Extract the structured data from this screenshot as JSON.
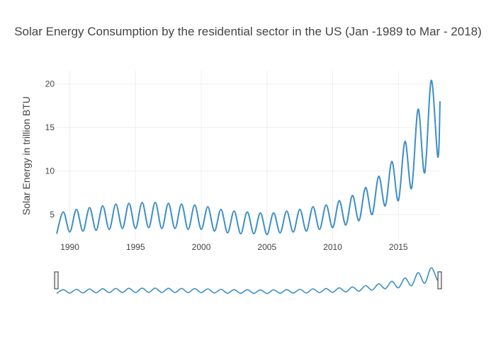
{
  "chart_data": {
    "type": "line",
    "title": "Solar Energy Consumption by the residential sector in the US (Jan -1989 to Mar - 2018)",
    "xlabel": "",
    "ylabel": "Solar Energy in trillion BTU",
    "x_range": [
      "1989-01",
      "2018-03"
    ],
    "ylim": [
      2.0,
      21.5
    ],
    "x_ticks": [
      "1990",
      "1995",
      "2000",
      "2005",
      "2010",
      "2015"
    ],
    "y_ticks": [
      "5",
      "10",
      "15",
      "20"
    ],
    "grid": true,
    "legend": "none",
    "series_color": "#3d8fc6",
    "range_slider": true,
    "series": [
      {
        "x": [
          "1989-01",
          "1989-07",
          "1990-01",
          "1990-07",
          "1991-01",
          "1991-07",
          "1992-01",
          "1992-07",
          "1993-01",
          "1993-07",
          "1994-01",
          "1994-07",
          "1995-01",
          "1995-07",
          "1996-01",
          "1996-07",
          "1997-01",
          "1997-07",
          "1998-01",
          "1998-07",
          "1999-01",
          "1999-07",
          "2000-01",
          "2000-07",
          "2001-01",
          "2001-07",
          "2002-01",
          "2002-07",
          "2003-01",
          "2003-07",
          "2004-01",
          "2004-07",
          "2005-01",
          "2005-07",
          "2006-01",
          "2006-07",
          "2007-01",
          "2007-07",
          "2008-01",
          "2008-07",
          "2009-01",
          "2009-07",
          "2010-01",
          "2010-07",
          "2011-01",
          "2011-07",
          "2012-01",
          "2012-07",
          "2013-01",
          "2013-07",
          "2014-01",
          "2014-07",
          "2015-01",
          "2015-07",
          "2016-01",
          "2016-07",
          "2017-01",
          "2017-07",
          "2018-01",
          "2018-03"
        ],
        "values": [
          2.8,
          5.3,
          3.0,
          5.6,
          3.1,
          5.8,
          3.2,
          6.0,
          3.3,
          6.2,
          3.4,
          6.3,
          3.4,
          6.4,
          3.5,
          6.4,
          3.4,
          6.3,
          3.4,
          6.2,
          3.3,
          6.1,
          3.3,
          5.9,
          3.1,
          5.6,
          2.9,
          5.4,
          2.8,
          5.3,
          2.8,
          5.2,
          2.7,
          5.2,
          2.9,
          5.4,
          3.0,
          5.6,
          3.1,
          5.9,
          3.3,
          6.1,
          3.5,
          6.6,
          3.8,
          7.2,
          4.3,
          8.1,
          5.0,
          9.4,
          6.0,
          11.1,
          6.6,
          13.4,
          8.0,
          17.1,
          9.8,
          20.4,
          11.6,
          18.0
        ]
      }
    ]
  }
}
